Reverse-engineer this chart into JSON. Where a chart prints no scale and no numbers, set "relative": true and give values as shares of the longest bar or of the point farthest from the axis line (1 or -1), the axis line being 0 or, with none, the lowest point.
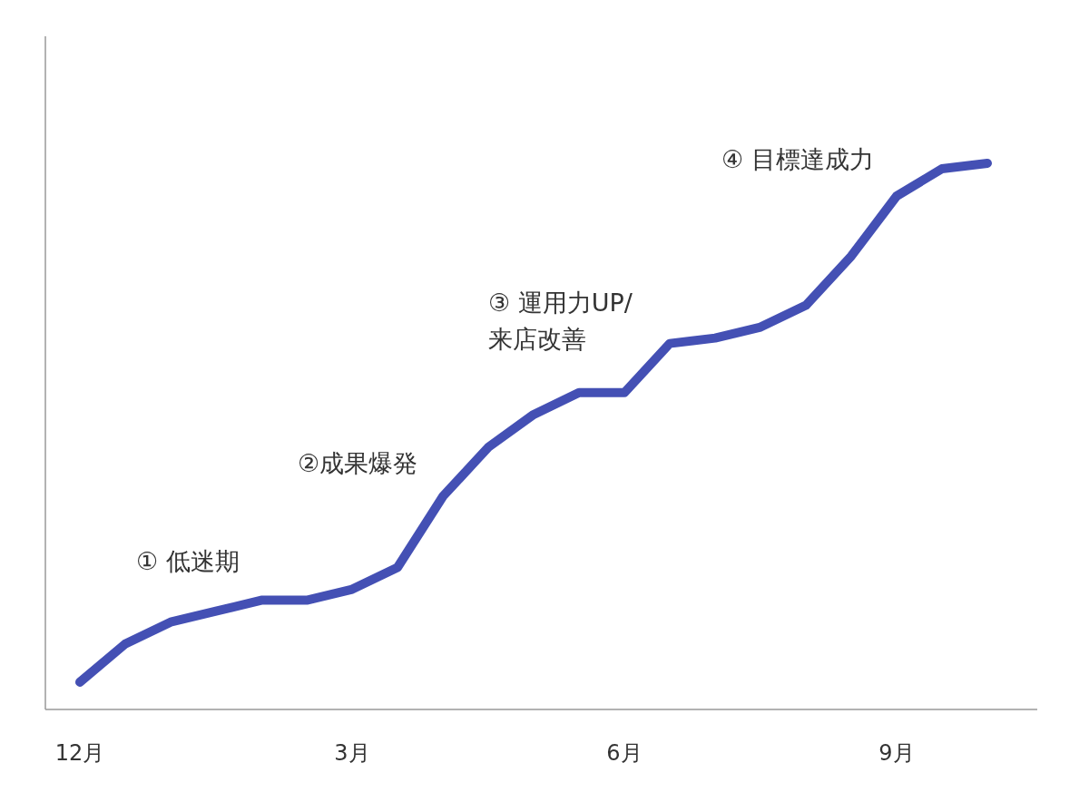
{
  "chart_data": {
    "type": "line",
    "relative": true,
    "categories": [
      "12月",
      null,
      null,
      null,
      null,
      null,
      "3月",
      null,
      null,
      null,
      null,
      null,
      "6月",
      null,
      null,
      null,
      null,
      null,
      "9月",
      null,
      null
    ],
    "series": [
      {
        "color": "#4450b4",
        "values": [
          0.05,
          0.12,
          0.16,
          0.18,
          0.2,
          0.2,
          0.22,
          0.26,
          0.39,
          0.48,
          0.54,
          0.58,
          0.58,
          0.67,
          0.68,
          0.7,
          0.74,
          0.83,
          0.94,
          0.99,
          1.0
        ]
      }
    ],
    "annotations": [
      "① 低迷期",
      "②成果爆発",
      "③ 運用力UP/\n来店改善",
      "④ 目標達成力"
    ],
    "marker": "none",
    "line_style": "solid"
  }
}
